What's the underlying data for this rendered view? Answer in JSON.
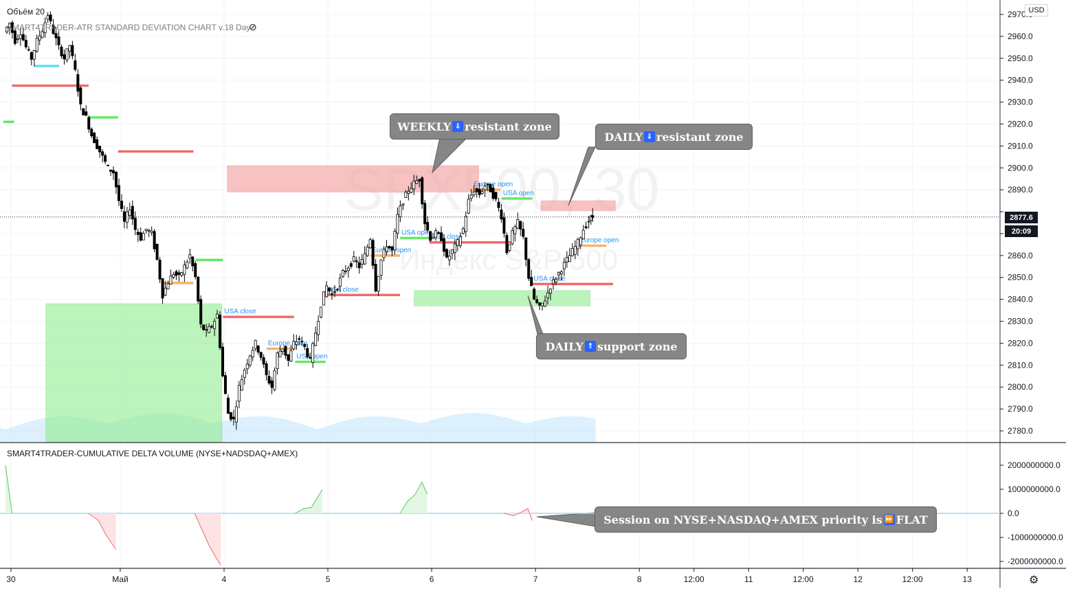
{
  "header": {
    "volume_label": "Объём 20",
    "study_label": "SMART4TRADER-ATR STANDARD DEVIATION CHART v.18 Day",
    "watermark_symbol": "SPX500, 30",
    "watermark_name": "Индекс S&P 500"
  },
  "currency": "USD",
  "last_price": "2877.6",
  "countdown": "20:09",
  "callouts": {
    "weekly_res": {
      "text": "WEEKLY",
      "rest": "resistant zone",
      "arrow": "⇓"
    },
    "daily_res": {
      "text": "DAILY",
      "rest": "resistant zone",
      "arrow": "⇓"
    },
    "daily_sup": {
      "text": "DAILY",
      "rest": "support zone",
      "arrow": "⇑"
    },
    "session": {
      "text": "Session on NYSE+NASDAQ+AMEX priority is",
      "rest": "FLAT",
      "arrow": "⏩"
    }
  },
  "colors": {
    "up": "#000000",
    "resist_zone": "#f5a3a3",
    "support_zone": "#90ee90",
    "red_level": "#f06b6b",
    "green_level": "#66e866",
    "orange_level": "#f7b36a",
    "cyan_level": "#5fe0f0",
    "volume_area": "#bfe3fb",
    "label_blue": "#2196f3"
  },
  "chart_data": {
    "type": "candlestick",
    "symbol": "SPX500",
    "timeframe": "30",
    "price_axis": {
      "ylim": [
        2775,
        2973
      ],
      "ticks": [
        2970.0,
        2960.0,
        2950.0,
        2940.0,
        2930.0,
        2920.0,
        2910.0,
        2900.0,
        2890.0,
        2880.0,
        2870.0,
        2860.0,
        2850.0,
        2840.0,
        2830.0,
        2820.0,
        2810.0,
        2800.0,
        2790.0,
        2780.0
      ],
      "tick_labels": [
        "2970.0",
        "2960.0",
        "2950.0",
        "2940.0",
        "2930.0",
        "2920.0",
        "2910.0",
        "2900.0",
        "2890.0",
        "",
        "2870.0",
        "2860.0",
        "2850.0",
        "2840.0",
        "2830.0",
        "2820.0",
        "2810.0",
        "2800.0",
        "2790.0",
        "2780.0"
      ]
    },
    "time_axis": {
      "labels": [
        "30",
        "Май",
        "4",
        "5",
        "6",
        "7",
        "8",
        "12:00",
        "11",
        "12:00",
        "12",
        "12:00",
        "13"
      ],
      "label_t": [
        0.5,
        10.5,
        20.0,
        29.5,
        39.0,
        48.5,
        58.0,
        63.0,
        68.0,
        73.0,
        78.0,
        83.0,
        88.0
      ]
    },
    "price_path": [
      [
        0,
        2962
      ],
      [
        0.5,
        2966
      ],
      [
        1,
        2958
      ],
      [
        1.5,
        2962
      ],
      [
        2,
        2955
      ],
      [
        2.5,
        2950
      ],
      [
        3,
        2958
      ],
      [
        3.5,
        2963
      ],
      [
        4,
        2970
      ],
      [
        4.5,
        2962
      ],
      [
        5,
        2955
      ],
      [
        5.5,
        2950
      ],
      [
        6,
        2956
      ],
      [
        6.5,
        2944
      ],
      [
        7,
        2928
      ],
      [
        7.5,
        2923
      ],
      [
        8,
        2915
      ],
      [
        8.5,
        2910
      ],
      [
        9,
        2905
      ],
      [
        9.5,
        2900
      ],
      [
        10,
        2898
      ],
      [
        10.5,
        2885
      ],
      [
        11,
        2875
      ],
      [
        11.5,
        2882
      ],
      [
        12,
        2872
      ],
      [
        12.5,
        2868
      ],
      [
        13,
        2872
      ],
      [
        13.5,
        2870
      ],
      [
        14,
        2858
      ],
      [
        14.5,
        2842
      ],
      [
        15,
        2848
      ],
      [
        15.5,
        2852
      ],
      [
        16,
        2850
      ],
      [
        16.5,
        2855
      ],
      [
        17,
        2860
      ],
      [
        17.5,
        2850
      ],
      [
        18,
        2828
      ],
      [
        18.5,
        2825
      ],
      [
        19,
        2828
      ],
      [
        19.5,
        2833
      ],
      [
        20,
        2805
      ],
      [
        20.5,
        2788
      ],
      [
        21,
        2785
      ],
      [
        21.5,
        2800
      ],
      [
        22,
        2808
      ],
      [
        22.5,
        2815
      ],
      [
        23,
        2820
      ],
      [
        23.5,
        2814
      ],
      [
        24,
        2805
      ],
      [
        24.5,
        2800
      ],
      [
        25,
        2815
      ],
      [
        25.5,
        2818
      ],
      [
        26,
        2812
      ],
      [
        26.5,
        2820
      ],
      [
        27,
        2822
      ],
      [
        27.5,
        2818
      ],
      [
        28,
        2812
      ],
      [
        28.5,
        2825
      ],
      [
        29,
        2838
      ],
      [
        29.5,
        2846
      ],
      [
        30,
        2842
      ],
      [
        30.5,
        2846
      ],
      [
        31,
        2852
      ],
      [
        31.5,
        2855
      ],
      [
        32,
        2858
      ],
      [
        32.5,
        2855
      ],
      [
        33,
        2860
      ],
      [
        33.5,
        2868
      ],
      [
        34,
        2845
      ],
      [
        34.5,
        2858
      ],
      [
        35,
        2865
      ],
      [
        35.5,
        2862
      ],
      [
        36,
        2878
      ],
      [
        36.5,
        2885
      ],
      [
        37,
        2890
      ],
      [
        37.5,
        2893
      ],
      [
        38,
        2895
      ],
      [
        38.5,
        2875
      ],
      [
        39,
        2868
      ],
      [
        39.5,
        2870
      ],
      [
        40,
        2868
      ],
      [
        40.5,
        2858
      ],
      [
        41,
        2862
      ],
      [
        41.5,
        2866
      ],
      [
        42,
        2872
      ],
      [
        42.5,
        2885
      ],
      [
        43,
        2890
      ],
      [
        43.5,
        2888
      ],
      [
        44,
        2892
      ],
      [
        44.5,
        2890
      ],
      [
        45,
        2885
      ],
      [
        45.5,
        2878
      ],
      [
        46,
        2862
      ],
      [
        46.5,
        2870
      ],
      [
        47,
        2875
      ],
      [
        47.5,
        2868
      ],
      [
        48,
        2850
      ],
      [
        48.5,
        2840
      ],
      [
        49,
        2836
      ],
      [
        49.5,
        2840
      ],
      [
        50,
        2846
      ],
      [
        50.5,
        2850
      ],
      [
        51,
        2854
      ],
      [
        51.5,
        2858
      ],
      [
        52,
        2862
      ],
      [
        52.5,
        2866
      ],
      [
        53,
        2872
      ],
      [
        53.5,
        2876
      ],
      [
        53.8,
        2877.6
      ]
    ],
    "zones": [
      {
        "kind": "resist",
        "t0": 20.3,
        "t1": 43.3,
        "y0": 2889,
        "y1": 2901
      },
      {
        "kind": "resist",
        "t0": 49.0,
        "t1": 55.8,
        "y0": 2880.5,
        "y1": 2885
      },
      {
        "kind": "support",
        "t0": 37.4,
        "t1": 53.5,
        "y0": 2837,
        "y1": 2844
      },
      {
        "kind": "support",
        "t0": 3.7,
        "t1": 19.8,
        "y0": 2770,
        "y1": 2838
      }
    ],
    "levels": [
      {
        "color": "cyan",
        "t0": 2.6,
        "t1": 4.9,
        "y": 2946.5,
        "label": ""
      },
      {
        "color": "red",
        "t0": 0.6,
        "t1": 7.6,
        "y": 2937.5,
        "label": ""
      },
      {
        "color": "green",
        "t0": -0.2,
        "t1": 0.8,
        "y": 2921.0,
        "label": ""
      },
      {
        "color": "green",
        "t0": 7.6,
        "t1": 10.3,
        "y": 2923.0,
        "label": ""
      },
      {
        "color": "red",
        "t0": 10.3,
        "t1": 17.2,
        "y": 2907.5,
        "label": ""
      },
      {
        "color": "green",
        "t0": 17.4,
        "t1": 19.9,
        "y": 2858.0,
        "label": ""
      },
      {
        "color": "orange",
        "t0": 14.3,
        "t1": 17.2,
        "y": 2847.5,
        "label": ""
      },
      {
        "color": "red",
        "t0": 19.9,
        "t1": 26.4,
        "y": 2832.0,
        "label": "USA close"
      },
      {
        "color": "orange",
        "t0": 23.9,
        "t1": 26.5,
        "y": 2817.5,
        "label": "Europe open"
      },
      {
        "color": "green",
        "t0": 26.5,
        "t1": 29.3,
        "y": 2811.5,
        "label": "USA open"
      },
      {
        "color": "red",
        "t0": 29.3,
        "t1": 36.1,
        "y": 2842.0,
        "label": "USA close"
      },
      {
        "color": "orange",
        "t0": 33.4,
        "t1": 36.1,
        "y": 2860.0,
        "label": "Europe open"
      },
      {
        "color": "green",
        "t0": 36.1,
        "t1": 38.8,
        "y": 2868.0,
        "label": "USA open"
      },
      {
        "color": "red",
        "t0": 38.8,
        "t1": 46.5,
        "y": 2866.0,
        "label": "USA close"
      },
      {
        "color": "orange",
        "t0": 42.7,
        "t1": 45.3,
        "y": 2890.0,
        "label": "Europe open"
      },
      {
        "color": "green",
        "t0": 45.4,
        "t1": 48.2,
        "y": 2886.0,
        "label": "USA open"
      },
      {
        "color": "red",
        "t0": 48.2,
        "t1": 55.6,
        "y": 2847.0,
        "label": "USA close"
      },
      {
        "color": "orange",
        "t0": 52.4,
        "t1": 55.0,
        "y": 2864.5,
        "label": "Europe open"
      }
    ],
    "cdv_panel": {
      "title": "SMART4TRADER-CUMULATIVE DELTA VOLUME (NYSE+NADSDAQ+AMEX)",
      "ylim": [
        -2200000000,
        2700000000
      ],
      "ticks": [
        2000000000,
        1000000000,
        0,
        -1000000000,
        -2000000000
      ],
      "tick_labels": [
        "2000000000.0",
        "1000000000.0",
        "0.0",
        "-1000000000.0",
        "-2000000000.0"
      ],
      "sessions": [
        {
          "t": [
            0,
            0.6
          ],
          "v": [
            2000000000,
            0
          ]
        },
        {
          "t": [
            7.6,
            8.5,
            9.2,
            9.8,
            10.1
          ],
          "v": [
            0,
            -300000000,
            -900000000,
            -1300000000,
            -1500000000
          ]
        },
        {
          "t": [
            17.3,
            18.0,
            18.6,
            19.2,
            19.7
          ],
          "v": [
            0,
            -700000000,
            -1300000000,
            -1800000000,
            -2150000000
          ]
        },
        {
          "t": [
            26.5,
            27.3,
            28.0,
            28.6,
            29.0
          ],
          "v": [
            0,
            200000000,
            250000000,
            700000000,
            1000000000
          ]
        },
        {
          "t": [
            36.1,
            36.8,
            37.5,
            38.1,
            38.6
          ],
          "v": [
            0,
            500000000,
            800000000,
            1300000000,
            800000000
          ]
        },
        {
          "t": [
            45.6,
            46.5,
            47.2,
            47.8,
            48.2
          ],
          "v": [
            0,
            -100000000,
            50000000,
            200000000,
            -300000000
          ]
        }
      ]
    }
  }
}
